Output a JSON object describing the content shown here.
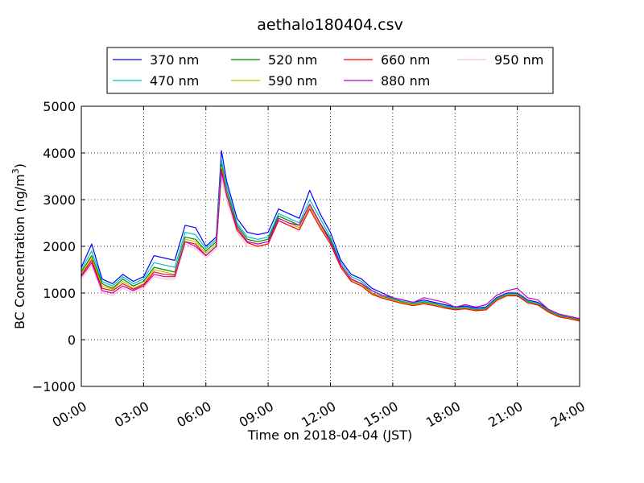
{
  "chart_data": {
    "type": "line",
    "title": "aethalo180404.csv",
    "xlabel": "Time on 2018-04-04 (JST)",
    "ylabel_main": "BC Concentration (ng/m",
    "ylabel_sup": "3",
    "ylabel_end": ")",
    "xlim": [
      0,
      24
    ],
    "ylim": [
      -1000,
      5000
    ],
    "xticks": [
      0,
      3,
      6,
      9,
      12,
      15,
      18,
      21,
      24
    ],
    "xtick_labels": [
      "00:00",
      "03:00",
      "06:00",
      "09:00",
      "12:00",
      "15:00",
      "18:00",
      "21:00",
      "24:00"
    ],
    "yticks": [
      -1000,
      0,
      1000,
      2000,
      3000,
      4000,
      5000
    ],
    "ytick_labels": [
      "−1000",
      "0",
      "1000",
      "2000",
      "3000",
      "4000",
      "5000"
    ],
    "grid": true,
    "legend_position": "top-center",
    "legend_columns": 4,
    "x": [
      0.0,
      0.5,
      1.0,
      1.5,
      2.0,
      2.5,
      3.0,
      3.5,
      4.0,
      4.5,
      5.0,
      5.5,
      6.0,
      6.5,
      6.75,
      7.0,
      7.5,
      8.0,
      8.5,
      9.0,
      9.5,
      10.0,
      10.5,
      11.0,
      11.5,
      12.0,
      12.5,
      13.0,
      13.5,
      14.0,
      14.5,
      15.0,
      15.5,
      16.0,
      16.5,
      17.0,
      17.5,
      18.0,
      18.5,
      19.0,
      19.5,
      20.0,
      20.5,
      21.0,
      21.5,
      22.0,
      22.5,
      23.0,
      23.5,
      24.0
    ],
    "series": [
      {
        "name": "370 nm",
        "color": "#0000ff",
        "values": [
          1550,
          2050,
          1300,
          1200,
          1400,
          1250,
          1350,
          1800,
          1750,
          1700,
          2450,
          2400,
          2000,
          2200,
          4050,
          3400,
          2600,
          2300,
          2250,
          2300,
          2800,
          2700,
          2600,
          3200,
          2700,
          2300,
          1700,
          1400,
          1300,
          1100,
          1000,
          900,
          850,
          800,
          850,
          800,
          750,
          700,
          720,
          680,
          700,
          900,
          1000,
          1000,
          850,
          800,
          650,
          550,
          500,
          450
        ]
      },
      {
        "name": "470 nm",
        "color": "#00bfbf",
        "values": [
          1500,
          1900,
          1250,
          1150,
          1350,
          1200,
          1300,
          1650,
          1600,
          1550,
          2300,
          2250,
          1950,
          2150,
          3850,
          3300,
          2500,
          2200,
          2150,
          2200,
          2700,
          2600,
          2500,
          3000,
          2600,
          2200,
          1650,
          1350,
          1250,
          1050,
          950,
          880,
          820,
          780,
          820,
          780,
          720,
          680,
          700,
          660,
          680,
          880,
          980,
          980,
          830,
          780,
          630,
          530,
          480,
          430
        ]
      },
      {
        "name": "520 nm",
        "color": "#008000",
        "values": [
          1450,
          1800,
          1200,
          1100,
          1300,
          1150,
          1250,
          1550,
          1500,
          1450,
          2200,
          2150,
          1900,
          2100,
          3750,
          3200,
          2450,
          2150,
          2100,
          2150,
          2650,
          2550,
          2450,
          2900,
          2500,
          2150,
          1600,
          1300,
          1200,
          1000,
          920,
          860,
          800,
          760,
          800,
          760,
          700,
          660,
          680,
          640,
          660,
          860,
          960,
          960,
          810,
          760,
          610,
          510,
          470,
          420
        ]
      },
      {
        "name": "590 nm",
        "color": "#bfbf00",
        "values": [
          1400,
          1750,
          1150,
          1080,
          1250,
          1100,
          1200,
          1500,
          1450,
          1400,
          2150,
          2100,
          1850,
          2050,
          3700,
          3150,
          2400,
          2100,
          2050,
          2100,
          2600,
          2500,
          2400,
          2850,
          2450,
          2100,
          1580,
          1280,
          1180,
          990,
          910,
          850,
          790,
          750,
          790,
          750,
          690,
          650,
          670,
          630,
          650,
          850,
          950,
          950,
          800,
          750,
          600,
          500,
          460,
          410
        ]
      },
      {
        "name": "660 nm",
        "color": "#ff0000",
        "values": [
          1380,
          1700,
          1100,
          1050,
          1200,
          1080,
          1180,
          1450,
          1400,
          1380,
          2100,
          2050,
          1800,
          2000,
          3650,
          3100,
          2350,
          2080,
          2000,
          2050,
          2550,
          2450,
          2350,
          2800,
          2400,
          2050,
          1550,
          1250,
          1150,
          970,
          890,
          830,
          770,
          730,
          770,
          730,
          680,
          640,
          660,
          620,
          640,
          840,
          940,
          940,
          790,
          740,
          590,
          490,
          450,
          400
        ]
      },
      {
        "name": "880 nm",
        "color": "#bf00bf",
        "values": [
          1350,
          1650,
          1050,
          1000,
          1150,
          1050,
          1150,
          1400,
          1350,
          1350,
          2100,
          2000,
          1800,
          2000,
          3600,
          3100,
          2400,
          2100,
          2050,
          2100,
          2600,
          2500,
          2450,
          2900,
          2500,
          2100,
          1600,
          1300,
          1200,
          1050,
          950,
          900,
          850,
          800,
          900,
          850,
          800,
          700,
          750,
          700,
          750,
          950,
          1050,
          1100,
          900,
          850,
          650,
          550,
          500,
          450
        ]
      },
      {
        "name": "950 nm",
        "color": "#ffc0cb",
        "values": [
          1300,
          1600,
          1000,
          950,
          1100,
          1000,
          1100,
          1350,
          1300,
          1300,
          2050,
          1950,
          1750,
          1950,
          3500,
          3000,
          2300,
          2000,
          2000,
          2050,
          2550,
          2450,
          2400,
          2850,
          2450,
          2050,
          1550,
          1250,
          1150,
          1000,
          900,
          850,
          800,
          750,
          850,
          800,
          750,
          650,
          700,
          650,
          700,
          900,
          1000,
          1050,
          850,
          800,
          600,
          500,
          450,
          400
        ]
      }
    ]
  }
}
